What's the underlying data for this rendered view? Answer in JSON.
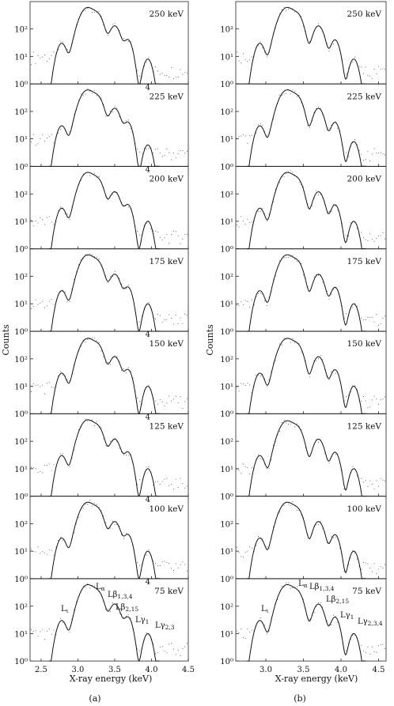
{
  "figure": {
    "ylabel": "Counts",
    "xlabel": "X-ray energy (keV)",
    "panel_labels": [
      "(a)",
      "(b)"
    ],
    "ytick_labels": [
      "10⁰",
      "10¹",
      "10²"
    ],
    "ytick_values": [
      1,
      10,
      100
    ]
  },
  "chart_data": [
    {
      "type": "line",
      "panel": "(a)",
      "y_scale": "log",
      "ylim": [
        1,
        1000
      ],
      "xlim": [
        2.35,
        4.5
      ],
      "xticks": [
        2.5,
        3.0,
        3.5,
        4.0,
        4.5
      ],
      "xtick_labels": [
        "2.5",
        "3.0",
        "3.5",
        "4.0",
        "4.5"
      ],
      "xlabel": "X-ray energy (keV)",
      "ylabel": "Counts",
      "peaks_keV": [
        2.78,
        3.13,
        3.28,
        3.5,
        3.68,
        3.95
      ],
      "subplots": [
        {
          "energy_label": "250 keV",
          "marker": "",
          "peak_heights": [
            30,
            600,
            250,
            130,
            40,
            8
          ]
        },
        {
          "energy_label": "225 keV",
          "marker": "4",
          "peak_heights": [
            30,
            600,
            250,
            130,
            40,
            6
          ]
        },
        {
          "energy_label": "200 keV",
          "marker": "4",
          "peak_heights": [
            30,
            600,
            250,
            120,
            40,
            10
          ]
        },
        {
          "energy_label": "175 keV",
          "marker": "",
          "peak_heights": [
            30,
            600,
            250,
            120,
            40,
            10
          ]
        },
        {
          "energy_label": "150 keV",
          "marker": "4",
          "peak_heights": [
            30,
            550,
            240,
            120,
            40,
            10
          ]
        },
        {
          "energy_label": "125 keV",
          "marker": "4",
          "peak_heights": [
            30,
            600,
            250,
            120,
            40,
            10
          ]
        },
        {
          "energy_label": "100 keV",
          "marker": "4",
          "peak_heights": [
            30,
            600,
            250,
            120,
            40,
            10
          ]
        },
        {
          "energy_label": "75 keV",
          "marker": "4",
          "peak_heights": [
            30,
            600,
            250,
            120,
            40,
            10
          ]
        }
      ]
    },
    {
      "type": "line",
      "panel": "(b)",
      "y_scale": "log",
      "ylim": [
        1,
        1000
      ],
      "xlim": [
        2.6,
        4.6
      ],
      "xticks": [
        3.0,
        3.5,
        4.0,
        4.5
      ],
      "xtick_labels": [
        "3.0",
        "3.5",
        "4.0",
        "4.5"
      ],
      "xlabel": "X-ray energy (keV)",
      "peaks_keV": [
        2.92,
        3.28,
        3.43,
        3.7,
        3.92,
        4.17
      ],
      "subplots": [
        {
          "energy_label": "250 keV",
          "peak_heights": [
            30,
            600,
            250,
            130,
            40,
            8
          ]
        },
        {
          "energy_label": "225 keV",
          "peak_heights": [
            30,
            600,
            250,
            130,
            40,
            8
          ]
        },
        {
          "energy_label": "200 keV",
          "peak_heights": [
            30,
            600,
            250,
            120,
            40,
            10
          ]
        },
        {
          "energy_label": "175 keV",
          "peak_heights": [
            30,
            600,
            250,
            120,
            40,
            10
          ]
        },
        {
          "energy_label": "150 keV",
          "peak_heights": [
            30,
            550,
            240,
            120,
            40,
            10
          ]
        },
        {
          "energy_label": "125 keV",
          "peak_heights": [
            30,
            550,
            240,
            120,
            40,
            10
          ]
        },
        {
          "energy_label": "100 keV",
          "peak_heights": [
            30,
            600,
            250,
            120,
            40,
            10
          ]
        },
        {
          "energy_label": "75 keV",
          "peak_heights": [
            30,
            600,
            250,
            120,
            40,
            10
          ]
        }
      ]
    }
  ],
  "peak_labels": [
    {
      "base": "L",
      "sub": "ι"
    },
    {
      "base": "L",
      "sub": "α"
    },
    {
      "base": "Lβ",
      "sub": "1,3,4"
    },
    {
      "base": "Lβ",
      "sub": "2,15"
    },
    {
      "base": "Lγ",
      "sub": "1"
    },
    {
      "base": "Lγ",
      "sub": "2,3"
    },
    {
      "base": "Lγ",
      "sub": "2,3,4"
    }
  ]
}
